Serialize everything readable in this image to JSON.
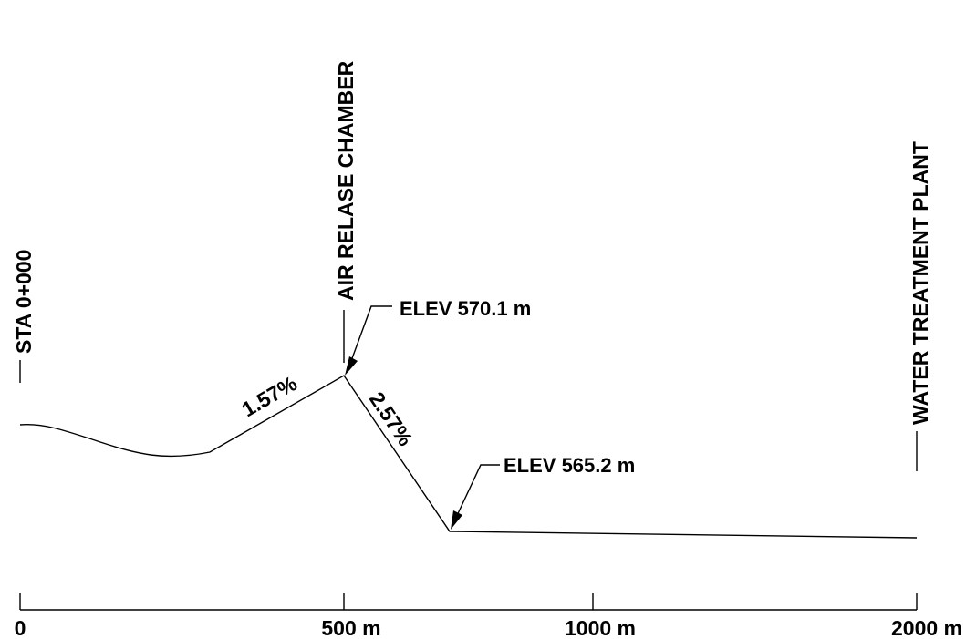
{
  "labels": {
    "start": "STA 0+000",
    "air_release": "AIR RELASE CHAMBER",
    "plant": "WATER TREATMENT PLANT",
    "elev_high": "ELEV 570.1 m",
    "elev_low": "ELEV 565.2 m",
    "grade_up": "1.57%",
    "grade_down": "2.57%"
  },
  "axis": {
    "ticks": [
      "0",
      "500 m",
      "1000 m",
      "2000 m"
    ]
  }
}
